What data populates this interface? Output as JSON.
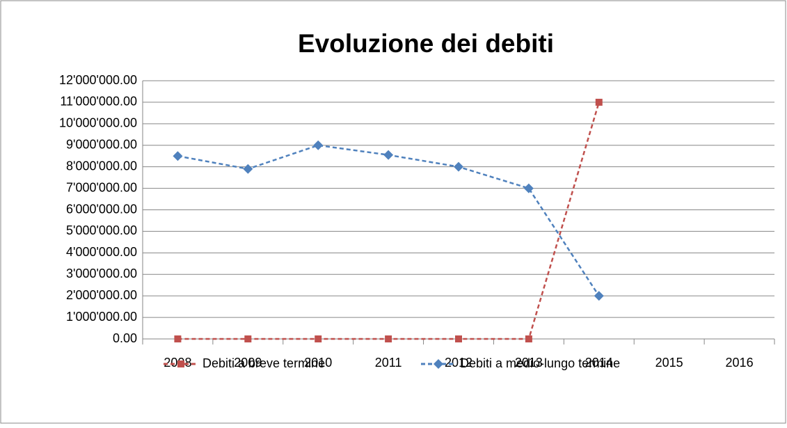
{
  "chart_data": {
    "type": "line",
    "title": "Evoluzione dei debiti",
    "categories": [
      "2008",
      "2009",
      "2010",
      "2011",
      "2012",
      "2013",
      "2014",
      "2015",
      "2016"
    ],
    "series": [
      {
        "name": "Debiti a breve termine",
        "color": "#c0504d",
        "marker": "square",
        "values": [
          0,
          0,
          0,
          0,
          0,
          0,
          11000000,
          null,
          null
        ]
      },
      {
        "name": "Debiti a medio-lungo termine",
        "color": "#4f81bd",
        "marker": "diamond",
        "values": [
          8500000,
          7900000,
          9000000,
          8550000,
          8000000,
          7000000,
          2000000,
          null,
          null
        ]
      }
    ],
    "ylim": [
      0,
      12000000
    ],
    "yticks": [
      {
        "value": 0,
        "label": "0.00"
      },
      {
        "value": 1000000,
        "label": "1'000'000.00"
      },
      {
        "value": 2000000,
        "label": "2'000'000.00"
      },
      {
        "value": 3000000,
        "label": "3'000'000.00"
      },
      {
        "value": 4000000,
        "label": "4'000'000.00"
      },
      {
        "value": 5000000,
        "label": "5'000'000.00"
      },
      {
        "value": 6000000,
        "label": "6'000'000.00"
      },
      {
        "value": 7000000,
        "label": "7'000'000.00"
      },
      {
        "value": 8000000,
        "label": "8'000'000.00"
      },
      {
        "value": 9000000,
        "label": "9'000'000.00"
      },
      {
        "value": 10000000,
        "label": "10'000'000.00"
      },
      {
        "value": 11000000,
        "label": "11'000'000.00"
      },
      {
        "value": 12000000,
        "label": "12'000'000.00"
      }
    ],
    "grid": true,
    "legend": "bottom"
  }
}
